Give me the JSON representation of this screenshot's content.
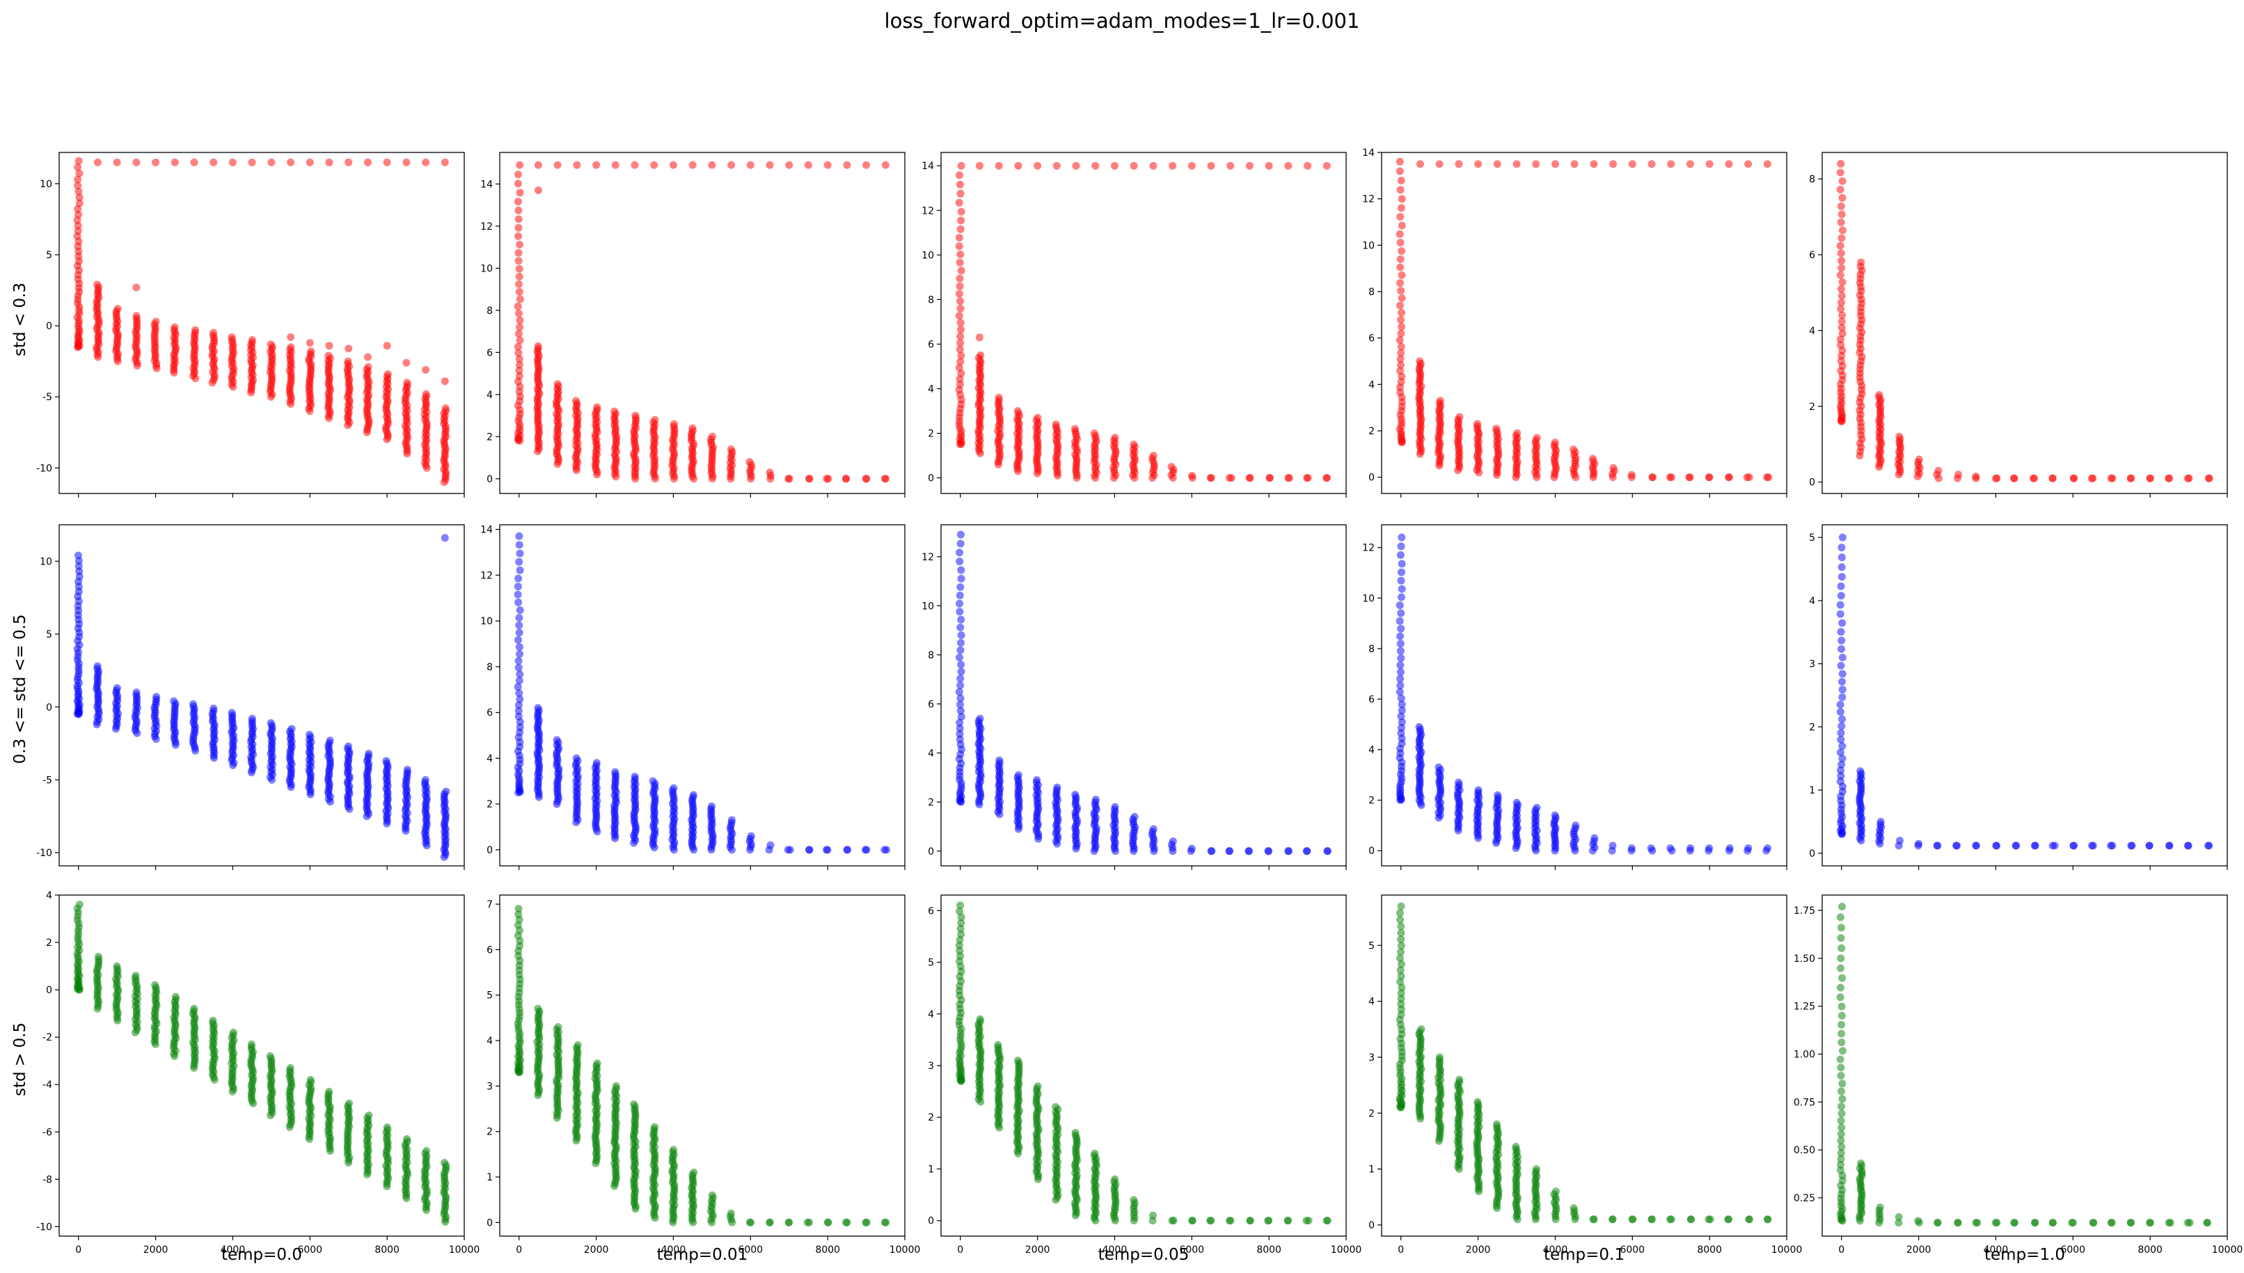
{
  "title": "loss_forward_optim=adam_modes=1_lr=0.001",
  "row_labels": [
    "std < 0.3",
    "0.3 <= std <= 0.5",
    "std > 0.5"
  ],
  "col_labels": [
    "temp=0.0",
    "temp=0.01",
    "temp=0.05",
    "temp=0.1",
    "temp=1.0"
  ],
  "colors": {
    "row0": "#ff0000",
    "row1": "#0000ff",
    "row2": "#008000"
  },
  "chart_data": {
    "type": "scatter",
    "title": "loss_forward_optim=adam_modes=1_lr=0.001",
    "x_points": [
      0,
      500,
      1000,
      1500,
      2000,
      2500,
      3000,
      3500,
      4000,
      4500,
      5000,
      5500,
      6000,
      6500,
      7000,
      7500,
      8000,
      8500,
      9000,
      9500
    ],
    "xlim": [
      -500,
      10000
    ],
    "xticks": [
      0,
      2000,
      4000,
      6000,
      8000,
      10000
    ],
    "grid": false,
    "marker_alpha": 0.5,
    "panels": [
      {
        "row": 0,
        "col": 0,
        "row_label": "std < 0.3",
        "col_label": "temp=0.0",
        "ylim": [
          -11.8,
          12.2
        ],
        "yticks": [
          -10,
          -5,
          0,
          5,
          10
        ],
        "min": [
          -1.5,
          -2.2,
          -2.5,
          -2.8,
          -3.0,
          -3.3,
          -3.7,
          -4.0,
          -4.3,
          -4.7,
          -5.0,
          -5.5,
          -6.0,
          -6.5,
          -7.0,
          -7.5,
          -8.0,
          -9.0,
          -10.0,
          -11.0
        ],
        "max": [
          11.6,
          2.9,
          1.2,
          0.7,
          0.3,
          -0.1,
          -0.3,
          -0.5,
          -0.8,
          -1.0,
          -1.3,
          -1.5,
          -1.8,
          -2.1,
          -2.5,
          -2.9,
          -3.4,
          -4.0,
          -4.8,
          -5.8
        ],
        "outliers": [
          [
            1500,
            2.7
          ],
          [
            5500,
            -0.8
          ],
          [
            6000,
            -1.2
          ],
          [
            6500,
            -1.4
          ],
          [
            7000,
            -1.6
          ],
          [
            7500,
            -2.2
          ],
          [
            8000,
            -1.4
          ],
          [
            8500,
            -2.6
          ],
          [
            9000,
            -3.1
          ],
          [
            9500,
            -3.9
          ]
        ],
        "top_line": 11.5
      },
      {
        "row": 0,
        "col": 1,
        "row_label": "std < 0.3",
        "col_label": "temp=0.01",
        "ylim": [
          -0.7,
          15.5
        ],
        "yticks": [
          0,
          2,
          4,
          6,
          8,
          10,
          12,
          14
        ],
        "min": [
          1.8,
          1.3,
          0.7,
          0.4,
          0.2,
          0.1,
          0.0,
          0.0,
          0.0,
          0.0,
          0.0,
          0.0,
          0.0,
          0.0,
          0.0,
          0.0,
          0.0,
          0.0,
          0.0,
          0.0
        ],
        "max": [
          14.9,
          6.3,
          4.5,
          3.7,
          3.4,
          3.2,
          3.0,
          2.8,
          2.6,
          2.4,
          2.0,
          1.4,
          0.8,
          0.3,
          0.0,
          0.0,
          0.0,
          0.0,
          0.0,
          0.0
        ],
        "outliers": [
          [
            500,
            13.7
          ]
        ],
        "top_line": 14.9
      },
      {
        "row": 0,
        "col": 2,
        "row_label": "std < 0.3",
        "col_label": "temp=0.05",
        "ylim": [
          -0.7,
          14.6
        ],
        "yticks": [
          0,
          2,
          4,
          6,
          8,
          10,
          12,
          14
        ],
        "min": [
          1.5,
          1.1,
          0.6,
          0.3,
          0.2,
          0.1,
          0.0,
          0.0,
          0.0,
          0.0,
          0.0,
          0.0,
          0.0,
          0.0,
          0.0,
          0.0,
          0.0,
          0.0,
          0.0,
          0.0
        ],
        "max": [
          14.0,
          5.5,
          3.6,
          3.0,
          2.7,
          2.4,
          2.2,
          2.0,
          1.8,
          1.5,
          1.0,
          0.5,
          0.1,
          0.0,
          0.0,
          0.0,
          0.0,
          0.0,
          0.0,
          0.0
        ],
        "outliers": [
          [
            500,
            6.3
          ]
        ],
        "top_line": 14.0
      },
      {
        "row": 0,
        "col": 3,
        "row_label": "std < 0.3",
        "col_label": "temp=0.1",
        "ylim": [
          -0.7,
          14.0
        ],
        "yticks": [
          0,
          2,
          4,
          6,
          8,
          10,
          12,
          14
        ],
        "min": [
          1.5,
          1.0,
          0.5,
          0.3,
          0.2,
          0.1,
          0.0,
          0.0,
          0.0,
          0.0,
          0.0,
          0.0,
          0.0,
          0.0,
          0.0,
          0.0,
          0.0,
          0.0,
          0.0,
          0.0
        ],
        "max": [
          13.6,
          5.0,
          3.3,
          2.6,
          2.3,
          2.1,
          1.9,
          1.7,
          1.5,
          1.2,
          0.8,
          0.4,
          0.1,
          0.0,
          0.0,
          0.0,
          0.0,
          0.0,
          0.0,
          0.0
        ],
        "outliers": [],
        "top_line": 13.5
      },
      {
        "row": 0,
        "col": 4,
        "row_label": "std < 0.3",
        "col_label": "temp=1.0",
        "ylim": [
          -0.3,
          8.7
        ],
        "yticks": [
          0,
          2,
          4,
          6,
          8
        ],
        "min": [
          1.6,
          0.7,
          0.4,
          0.2,
          0.15,
          0.1,
          0.1,
          0.1,
          0.1,
          0.1,
          0.1,
          0.1,
          0.1,
          0.1,
          0.1,
          0.1,
          0.1,
          0.1,
          0.1,
          0.1
        ],
        "max": [
          8.4,
          5.8,
          2.3,
          1.2,
          0.6,
          0.3,
          0.2,
          0.15,
          0.1,
          0.1,
          0.1,
          0.1,
          0.1,
          0.1,
          0.1,
          0.1,
          0.1,
          0.1,
          0.1,
          0.1
        ],
        "outliers": [],
        "top_line": null
      },
      {
        "row": 1,
        "col": 0,
        "row_label": "0.3 <= std <= 0.5",
        "col_label": "temp=0.0",
        "ylim": [
          -10.9,
          12.5
        ],
        "yticks": [
          -10,
          -5,
          0,
          5,
          10
        ],
        "min": [
          -0.5,
          -1.2,
          -1.5,
          -1.8,
          -2.2,
          -2.6,
          -3.0,
          -3.5,
          -4.0,
          -4.5,
          -5.0,
          -5.5,
          -6.0,
          -6.5,
          -7.0,
          -7.5,
          -8.0,
          -8.5,
          -9.5,
          -10.3
        ],
        "max": [
          10.4,
          2.8,
          1.3,
          1.0,
          0.7,
          0.4,
          0.2,
          -0.1,
          -0.4,
          -0.8,
          -1.1,
          -1.5,
          -1.9,
          -2.3,
          -2.7,
          -3.2,
          -3.7,
          -4.3,
          -5.0,
          -5.8
        ],
        "outliers": [
          [
            9500,
            11.6
          ]
        ],
        "top_line": null
      },
      {
        "row": 1,
        "col": 1,
        "row_label": "0.3 <= std <= 0.5",
        "col_label": "temp=0.01",
        "ylim": [
          -0.7,
          14.2
        ],
        "yticks": [
          0,
          2,
          4,
          6,
          8,
          10,
          12,
          14
        ],
        "min": [
          2.5,
          2.3,
          2.0,
          1.2,
          0.8,
          0.5,
          0.3,
          0.1,
          0.0,
          0.0,
          0.0,
          0.0,
          0.0,
          0.0,
          0.0,
          0.0,
          0.0,
          0.0,
          0.0,
          0.0
        ],
        "max": [
          13.7,
          6.2,
          4.8,
          4.0,
          3.8,
          3.4,
          3.2,
          3.0,
          2.7,
          2.4,
          1.9,
          1.3,
          0.6,
          0.2,
          0.0,
          0.0,
          0.0,
          0.0,
          0.0,
          0.0
        ],
        "outliers": [],
        "top_line": null
      },
      {
        "row": 1,
        "col": 2,
        "row_label": "0.3 <= std <= 0.5",
        "col_label": "temp=0.05",
        "ylim": [
          -0.6,
          13.3
        ],
        "yticks": [
          0,
          2,
          4,
          6,
          8,
          10,
          12
        ],
        "min": [
          2.0,
          1.9,
          1.5,
          0.9,
          0.5,
          0.3,
          0.1,
          0.0,
          0.0,
          0.0,
          0.0,
          0.0,
          0.0,
          0.0,
          0.0,
          0.0,
          0.0,
          0.0,
          0.0,
          0.0
        ],
        "max": [
          12.9,
          5.4,
          3.7,
          3.1,
          2.9,
          2.6,
          2.3,
          2.1,
          1.8,
          1.4,
          0.9,
          0.4,
          0.1,
          0.0,
          0.0,
          0.0,
          0.0,
          0.0,
          0.0,
          0.0
        ],
        "outliers": [],
        "top_line": null
      },
      {
        "row": 1,
        "col": 3,
        "row_label": "0.3 <= std <= 0.5",
        "col_label": "temp=0.1",
        "ylim": [
          -0.6,
          12.9
        ],
        "yticks": [
          0,
          2,
          4,
          6,
          8,
          10,
          12
        ],
        "min": [
          2.0,
          1.8,
          1.3,
          0.8,
          0.5,
          0.3,
          0.1,
          0.0,
          0.0,
          0.0,
          0.0,
          0.0,
          0.0,
          0.0,
          0.0,
          0.0,
          0.0,
          0.0,
          0.0,
          0.0
        ],
        "max": [
          12.4,
          4.9,
          3.3,
          2.7,
          2.4,
          2.2,
          1.9,
          1.7,
          1.4,
          1.0,
          0.5,
          0.2,
          0.1,
          0.1,
          0.1,
          0.1,
          0.1,
          0.1,
          0.1,
          0.1
        ],
        "outliers": [],
        "top_line": null
      },
      {
        "row": 1,
        "col": 4,
        "row_label": "0.3 <= std <= 0.5",
        "col_label": "temp=1.0",
        "ylim": [
          -0.2,
          5.2
        ],
        "yticks": [
          0,
          1,
          2,
          3,
          4,
          5
        ],
        "min": [
          0.3,
          0.2,
          0.15,
          0.12,
          0.12,
          0.12,
          0.12,
          0.12,
          0.12,
          0.12,
          0.12,
          0.12,
          0.12,
          0.12,
          0.12,
          0.12,
          0.12,
          0.12,
          0.12,
          0.12
        ],
        "max": [
          5.0,
          1.3,
          0.5,
          0.2,
          0.15,
          0.12,
          0.12,
          0.12,
          0.12,
          0.12,
          0.12,
          0.12,
          0.12,
          0.12,
          0.12,
          0.12,
          0.12,
          0.12,
          0.12,
          0.12
        ],
        "outliers": [],
        "top_line": null
      },
      {
        "row": 2,
        "col": 0,
        "row_label": "std > 0.5",
        "col_label": "temp=0.0",
        "ylim": [
          -10.4,
          4.0
        ],
        "yticks": [
          -10,
          -8,
          -6,
          -4,
          -2,
          0,
          2,
          4
        ],
        "min": [
          0.0,
          -0.8,
          -1.3,
          -1.8,
          -2.3,
          -2.8,
          -3.3,
          -3.8,
          -4.3,
          -4.8,
          -5.3,
          -5.8,
          -6.3,
          -6.8,
          -7.3,
          -7.8,
          -8.3,
          -8.8,
          -9.3,
          -9.8
        ],
        "max": [
          3.6,
          1.4,
          1.0,
          0.6,
          0.2,
          -0.3,
          -0.8,
          -1.3,
          -1.8,
          -2.3,
          -2.8,
          -3.3,
          -3.8,
          -4.3,
          -4.8,
          -5.3,
          -5.8,
          -6.3,
          -6.8,
          -7.3
        ],
        "outliers": [],
        "top_line": null
      },
      {
        "row": 2,
        "col": 1,
        "row_label": "std > 0.5",
        "col_label": "temp=0.01",
        "ylim": [
          -0.3,
          7.2
        ],
        "yticks": [
          0,
          1,
          2,
          3,
          4,
          5,
          6,
          7
        ],
        "min": [
          3.3,
          2.8,
          2.3,
          1.8,
          1.3,
          0.8,
          0.3,
          0.1,
          0.0,
          0.0,
          0.0,
          0.0,
          0.0,
          0.0,
          0.0,
          0.0,
          0.0,
          0.0,
          0.0,
          0.0
        ],
        "max": [
          6.9,
          4.7,
          4.3,
          3.9,
          3.5,
          3.0,
          2.6,
          2.1,
          1.6,
          1.1,
          0.6,
          0.2,
          0.0,
          0.0,
          0.0,
          0.0,
          0.0,
          0.0,
          0.0,
          0.0
        ],
        "outliers": [],
        "top_line": null
      },
      {
        "row": 2,
        "col": 2,
        "row_label": "std > 0.5",
        "col_label": "temp=0.05",
        "ylim": [
          -0.3,
          6.3
        ],
        "yticks": [
          0,
          1,
          2,
          3,
          4,
          5,
          6
        ],
        "min": [
          2.7,
          2.3,
          1.8,
          1.3,
          0.8,
          0.4,
          0.1,
          0.0,
          0.0,
          0.0,
          0.0,
          0.0,
          0.0,
          0.0,
          0.0,
          0.0,
          0.0,
          0.0,
          0.0,
          0.0
        ],
        "max": [
          6.1,
          3.9,
          3.4,
          3.1,
          2.6,
          2.2,
          1.7,
          1.3,
          0.8,
          0.4,
          0.1,
          0.0,
          0.0,
          0.0,
          0.0,
          0.0,
          0.0,
          0.0,
          0.0,
          0.0
        ],
        "outliers": [],
        "top_line": null
      },
      {
        "row": 2,
        "col": 3,
        "row_label": "std > 0.5",
        "col_label": "temp=0.1",
        "ylim": [
          -0.2,
          5.9
        ],
        "yticks": [
          0,
          1,
          2,
          3,
          4,
          5
        ],
        "min": [
          2.1,
          1.9,
          1.5,
          1.0,
          0.6,
          0.3,
          0.1,
          0.1,
          0.1,
          0.1,
          0.1,
          0.1,
          0.1,
          0.1,
          0.1,
          0.1,
          0.1,
          0.1,
          0.1,
          0.1
        ],
        "max": [
          5.7,
          3.5,
          3.0,
          2.6,
          2.2,
          1.8,
          1.4,
          1.0,
          0.6,
          0.3,
          0.1,
          0.1,
          0.1,
          0.1,
          0.1,
          0.1,
          0.1,
          0.1,
          0.1,
          0.1
        ],
        "outliers": [],
        "top_line": null
      },
      {
        "row": 2,
        "col": 4,
        "row_label": "std > 0.5",
        "col_label": "temp=1.0",
        "ylim": [
          0.05,
          1.83
        ],
        "yticks": [
          0.25,
          0.5,
          0.75,
          1.0,
          1.25,
          1.5,
          1.75
        ],
        "min": [
          0.13,
          0.13,
          0.12,
          0.12,
          0.12,
          0.12,
          0.12,
          0.12,
          0.12,
          0.12,
          0.12,
          0.12,
          0.12,
          0.12,
          0.12,
          0.12,
          0.12,
          0.12,
          0.12,
          0.12
        ],
        "max": [
          1.77,
          0.43,
          0.2,
          0.15,
          0.13,
          0.12,
          0.12,
          0.12,
          0.12,
          0.12,
          0.12,
          0.12,
          0.12,
          0.12,
          0.12,
          0.12,
          0.12,
          0.12,
          0.12,
          0.12
        ],
        "outliers": [],
        "top_line": null
      }
    ]
  }
}
